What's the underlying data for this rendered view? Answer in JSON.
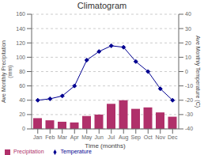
{
  "chart_data": {
    "type": "bar",
    "title": "Climatogram",
    "categories": [
      "Jan",
      "Feb",
      "Mar",
      "Apr",
      "May",
      "Jun",
      "Jul",
      "Aug",
      "Sep",
      "Oct",
      "Nov",
      "Dec"
    ],
    "series": [
      {
        "name": "Precipitation",
        "type": "bar",
        "color": "#b0306a",
        "values": [
          15,
          12,
          10,
          9,
          18,
          20,
          35,
          40,
          28,
          30,
          23,
          17
        ]
      },
      {
        "name": "Temperature",
        "type": "line",
        "axis": "y2",
        "color": "#000090",
        "marker": "diamond",
        "values": [
          -20,
          -19,
          -17,
          -10,
          8,
          14,
          18,
          17,
          7,
          0,
          -12,
          -20
        ]
      }
    ],
    "xlabel": "Time (months)",
    "ylabel": "Ave Monthly Precipitation\n(mm)",
    "y2label": "Ave Monthly Temperature (C)",
    "ylim": [
      0,
      160
    ],
    "yticks": [
      0,
      20,
      40,
      60,
      80,
      100,
      120,
      140,
      160
    ],
    "y2lim": [
      -40,
      40
    ],
    "y2ticks": [
      -40,
      -30,
      -20,
      -10,
      0,
      10,
      20,
      30,
      40
    ],
    "grid": true,
    "legend": "bottom"
  }
}
